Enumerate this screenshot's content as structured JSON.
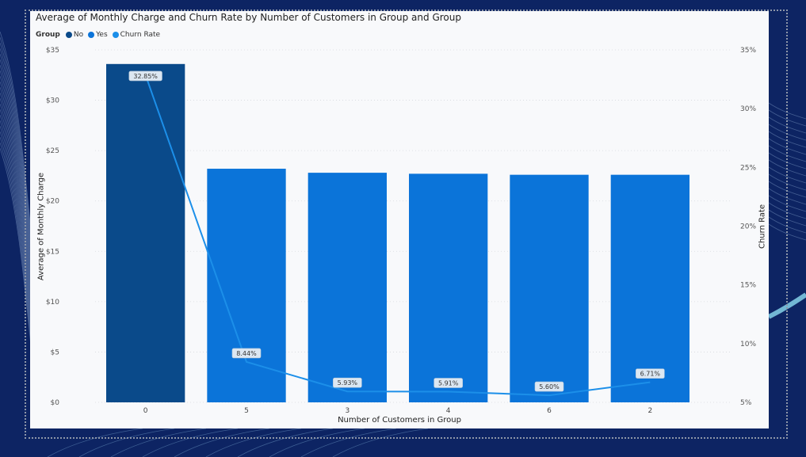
{
  "chart_data": {
    "type": "bar",
    "title": "Average of Monthly Charge and Churn Rate by Number of Customers in Group and Group",
    "legend": {
      "title": "Group",
      "entries": [
        {
          "name": "No",
          "color": "#0a4a8a"
        },
        {
          "name": "Yes",
          "color": "#0b74d9"
        },
        {
          "name": "Churn Rate",
          "color": "#1c8fe9"
        }
      ],
      "placement": "top-left"
    },
    "categories": [
      "0",
      "5",
      "3",
      "4",
      "6",
      "2"
    ],
    "bar_group": [
      "No",
      "Yes",
      "Yes",
      "Yes",
      "Yes",
      "Yes"
    ],
    "series": [
      {
        "name": "Average of Monthly Charge",
        "axis": "left",
        "type": "bar",
        "values": [
          33.6,
          23.2,
          22.8,
          22.7,
          22.6,
          22.6
        ]
      },
      {
        "name": "Churn Rate",
        "axis": "right",
        "type": "line",
        "values": [
          32.85,
          8.44,
          5.93,
          5.91,
          5.6,
          6.71
        ],
        "labels": [
          "32.85%",
          "8.44%",
          "5.93%",
          "5.91%",
          "5.60%",
          "6.71%"
        ]
      }
    ],
    "xlabel": "Number of Customers in Group",
    "ylabel": "Average of Monthly Charge",
    "ylabel_right": "Churn Rate",
    "ylim": [
      0,
      35
    ],
    "ylim_right": [
      5,
      35
    ],
    "yticks": [
      "$0",
      "$5",
      "$10",
      "$15",
      "$20",
      "$25",
      "$30",
      "$35"
    ],
    "yticks_right": [
      "5%",
      "10%",
      "15%",
      "20%",
      "25%",
      "30%",
      "35%"
    ],
    "grid": true,
    "colors": {
      "no": "#0a4a8a",
      "yes": "#0b74d9",
      "line": "#1c8fe9"
    }
  }
}
